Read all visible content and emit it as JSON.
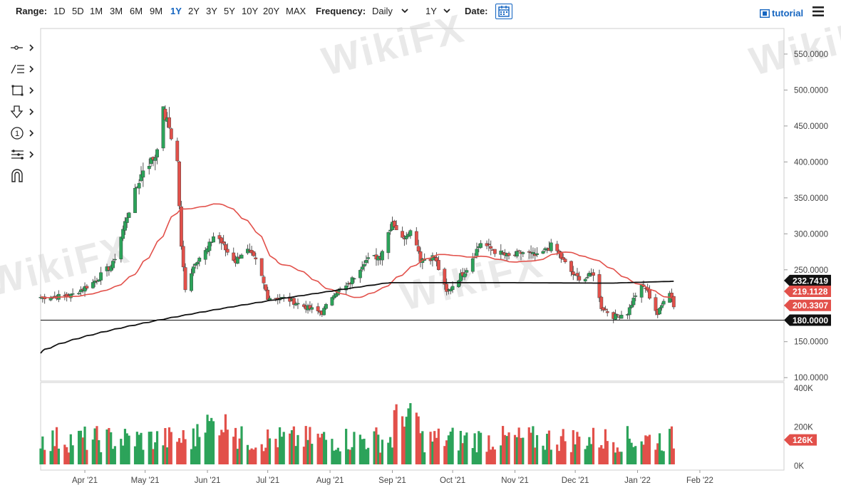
{
  "toolbar": {
    "range_label": "Range:",
    "ranges": [
      "1D",
      "5D",
      "1M",
      "3M",
      "6M",
      "9M",
      "1Y",
      "2Y",
      "3Y",
      "5Y",
      "10Y",
      "20Y",
      "MAX"
    ],
    "active_range": "1Y",
    "frequency_label": "Frequency:",
    "frequency_value": "Daily",
    "period_value": "1Y",
    "date_label": "Date:",
    "tutorial_label": "tutorial"
  },
  "watermark": "WikiFX",
  "drawing_tools": [
    "crosshair-icon",
    "trend-lines-icon",
    "shapes-icon",
    "arrow-down-icon",
    "annotation-icon",
    "fibonacci-icon",
    "magnet-icon"
  ],
  "colors": {
    "up": "#2ca35a",
    "down": "#e2504a",
    "ma_short": "#e2504a",
    "ma_long": "#111111",
    "accent": "#1565c0"
  },
  "chart_data": {
    "type": "candlestick",
    "x_ticks": [
      "Apr '21",
      "May '21",
      "Jun '21",
      "Jul '21",
      "Aug '21",
      "Sep '21",
      "Oct '21",
      "Nov '21",
      "Dec '21",
      "Jan '22",
      "Feb '22"
    ],
    "y_ticks": [
      "100.0000",
      "150.0000",
      "200.0000",
      "250.0000",
      "300.0000",
      "350.0000",
      "400.0000",
      "450.0000",
      "500.0000",
      "550.0000"
    ],
    "ylim": [
      100,
      575
    ],
    "price_labels": {
      "ma_long": "232.7419",
      "ma_short": "219.1128",
      "last_close": "200.3307",
      "horizontal_line": "180.0000"
    },
    "horizontal_line_value": 180,
    "volume_ticks": [
      "0K",
      "200K",
      "400K"
    ],
    "volume_ylim": [
      0,
      400
    ],
    "last_volume_label": "126K",
    "price_anchors": [
      [
        "2021-03-10",
        212
      ],
      [
        "2021-03-25",
        214
      ],
      [
        "2021-04-05",
        232
      ],
      [
        "2021-04-15",
        258
      ],
      [
        "2021-04-22",
        325
      ],
      [
        "2021-04-30",
        390
      ],
      [
        "2021-05-06",
        408
      ],
      [
        "2021-05-10",
        470
      ],
      [
        "2021-05-13",
        448
      ],
      [
        "2021-05-17",
        400
      ],
      [
        "2021-05-19",
        280
      ],
      [
        "2021-05-21",
        225
      ],
      [
        "2021-05-26",
        262
      ],
      [
        "2021-06-01",
        278
      ],
      [
        "2021-06-05",
        303
      ],
      [
        "2021-06-10",
        278
      ],
      [
        "2021-06-15",
        262
      ],
      [
        "2021-06-20",
        280
      ],
      [
        "2021-06-26",
        258
      ],
      [
        "2021-07-01",
        212
      ],
      [
        "2021-07-10",
        210
      ],
      [
        "2021-07-20",
        198
      ],
      [
        "2021-07-28",
        190
      ],
      [
        "2021-08-03",
        218
      ],
      [
        "2021-08-10",
        228
      ],
      [
        "2021-08-18",
        262
      ],
      [
        "2021-08-26",
        270
      ],
      [
        "2021-09-01",
        318
      ],
      [
        "2021-09-06",
        292
      ],
      [
        "2021-09-09",
        305
      ],
      [
        "2021-09-12",
        300
      ],
      [
        "2021-09-15",
        265
      ],
      [
        "2021-09-22",
        268
      ],
      [
        "2021-09-28",
        218
      ],
      [
        "2021-10-03",
        235
      ],
      [
        "2021-10-08",
        252
      ],
      [
        "2021-10-15",
        288
      ],
      [
        "2021-10-22",
        276
      ],
      [
        "2021-10-29",
        268
      ],
      [
        "2021-11-06",
        275
      ],
      [
        "2021-11-12",
        268
      ],
      [
        "2021-11-20",
        285
      ],
      [
        "2021-11-25",
        262
      ],
      [
        "2021-12-01",
        240
      ],
      [
        "2021-12-06",
        238
      ],
      [
        "2021-12-10",
        245
      ],
      [
        "2021-12-14",
        198
      ],
      [
        "2021-12-20",
        185
      ],
      [
        "2021-12-27",
        190
      ],
      [
        "2022-01-02",
        228
      ],
      [
        "2022-01-05",
        225
      ],
      [
        "2022-01-11",
        188
      ],
      [
        "2022-01-13",
        200
      ],
      [
        "2022-01-16",
        228
      ],
      [
        "2022-01-18",
        212
      ],
      [
        "2022-01-19",
        200
      ]
    ]
  }
}
